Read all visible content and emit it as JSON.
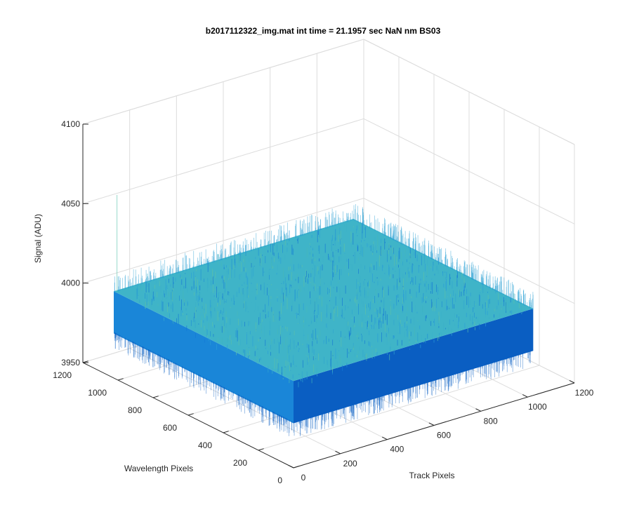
{
  "chart_data": {
    "type": "surface",
    "title": "b2017112322_img.mat int time = 21.1957 sec  NaN nm BS03",
    "xlabel": "Track Pixels",
    "ylabel": "Wavelength Pixels",
    "zlabel": "Signal (ADU)",
    "xlim": [
      0,
      1200
    ],
    "ylim": [
      0,
      1200
    ],
    "zlim": [
      3950,
      4100
    ],
    "x_ticks": [
      "0",
      "200",
      "400",
      "600",
      "800",
      "1000",
      "1200"
    ],
    "y_ticks": [
      "0",
      "200",
      "400",
      "600",
      "800",
      "1000",
      "1200"
    ],
    "z_ticks": [
      "3950",
      "4000",
      "4050",
      "4100"
    ],
    "data_extent": {
      "x": [
        0,
        1024
      ],
      "y": [
        0,
        1024
      ]
    },
    "signal_mean": 3992,
    "signal_spread": 14,
    "colormap": "parula",
    "grid": true,
    "colors": {
      "surface_main": "#1a86d8",
      "surface_dark": "#0a5ec2",
      "surface_light": "#3fb4c8",
      "grid": "#dcdcdc",
      "axis": "#262626"
    }
  }
}
